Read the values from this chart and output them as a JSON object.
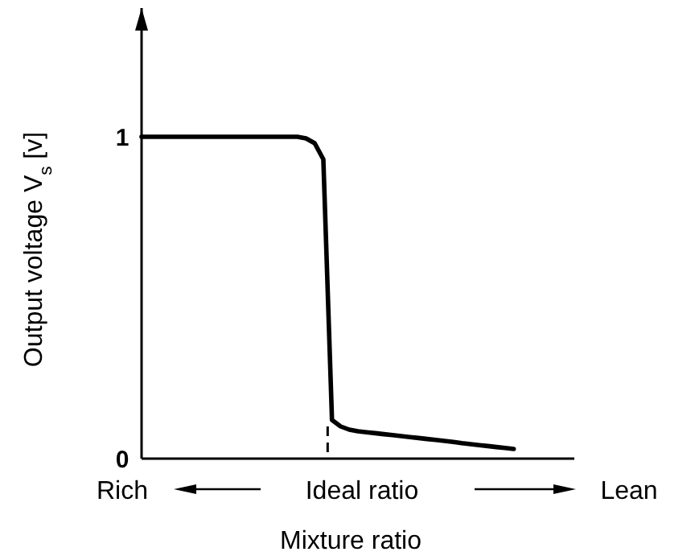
{
  "chart_data": {
    "type": "line",
    "xlabel": "Mixture ratio",
    "ylabel": "Output voltage V$_{s}$ [v]",
    "categories": [
      null,
      null,
      null,
      null,
      null,
      null,
      null,
      null,
      null,
      null,
      null,
      null,
      null,
      null,
      null,
      null,
      null,
      null,
      null,
      null,
      null,
      null,
      null,
      null,
      null,
      null,
      null,
      null,
      null,
      null,
      null,
      null,
      null,
      null,
      null,
      null,
      null,
      null,
      null,
      null,
      null,
      null,
      null,
      null,
      null,
      null,
      null,
      null,
      null,
      null,
      null
    ],
    "ylim": [
      0,
      1.4
    ],
    "yticks": [
      0,
      1
    ],
    "tick_labels": "y",
    "marker": "none",
    "line_style": "solid",
    "series": [
      {
        "color": "#000000",
        "values": [
          1,
          1,
          1,
          1,
          1,
          1,
          1,
          1,
          1,
          1,
          1,
          1,
          1,
          1,
          1,
          1,
          1,
          1,
          1,
          0.995,
          0.98,
          0.93,
          0.12,
          0.1,
          0.09,
          0.085,
          0.082,
          0.079,
          0.076,
          0.073,
          0.07,
          0.067,
          0.064,
          0.061,
          0.058,
          0.055,
          0.052,
          0.048,
          0.045,
          0.042,
          0.039,
          0.036,
          0.033,
          0.03,
          null,
          null,
          null,
          null,
          null,
          null,
          null
        ]
      }
    ],
    "annotations": [
      "Rich",
      "Ideal ratio",
      "Lean"
    ]
  }
}
